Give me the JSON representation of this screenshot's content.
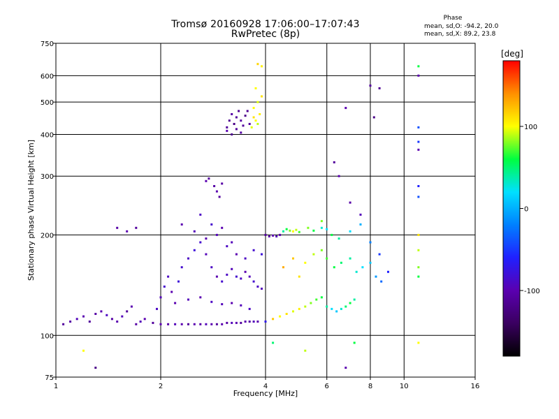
{
  "title": "Tromsø 20160928 17:06:00–17:07:43",
  "subtitle": "RwPretec (8p)",
  "phase_box": {
    "heading": "Phase",
    "o_line": "mean, sd,O: -94.2, 20.0",
    "x_line": "mean, sd,X:  89.2, 23.8"
  },
  "colorbar": {
    "title": "[deg]",
    "ticks": [
      "100",
      "0",
      "-100"
    ],
    "tick_values": [
      100,
      0,
      -100
    ],
    "range": [
      -180,
      180
    ],
    "colormap": [
      "#000000",
      "#3a0060",
      "#5a00b0",
      "#2020ff",
      "#0080ff",
      "#00e0ff",
      "#00ff40",
      "#ffff00",
      "#ff9000",
      "#ff0000"
    ]
  },
  "chart_data": {
    "type": "scatter",
    "title": "Tromsø 20160928 17:06:00–17:07:43",
    "subtitle": "RwPretec (8p)",
    "xlabel": "Frequency [MHz]",
    "ylabel": "Stationary phase Virtual Height [km]",
    "x_scale": "log",
    "y_scale": "log",
    "xlim": [
      1,
      16
    ],
    "ylim": [
      75,
      750
    ],
    "x_ticks": [
      1,
      2,
      4,
      6,
      8,
      10,
      16
    ],
    "x_tick_labels": [
      "1",
      "2",
      "4",
      "6",
      "8",
      "10",
      "16"
    ],
    "y_ticks": [
      75,
      100,
      200,
      300,
      400,
      500,
      600,
      750
    ],
    "y_tick_labels": [
      "75",
      "100",
      "200",
      "300",
      "400",
      "500",
      "600",
      "750"
    ],
    "grid": true,
    "series": [
      {
        "color_by": "phase [deg]",
        "points": [
          [
            1.05,
            108,
            -110
          ],
          [
            1.1,
            110,
            -105
          ],
          [
            1.15,
            112,
            -95
          ],
          [
            1.2,
            114,
            -100
          ],
          [
            1.25,
            110,
            -110
          ],
          [
            1.3,
            116,
            -105
          ],
          [
            1.35,
            118,
            -100
          ],
          [
            1.4,
            115,
            -90
          ],
          [
            1.45,
            112,
            -105
          ],
          [
            1.5,
            110,
            -100
          ],
          [
            1.55,
            114,
            -95
          ],
          [
            1.6,
            118,
            -110
          ],
          [
            1.65,
            122,
            -100
          ],
          [
            1.7,
            108,
            -105
          ],
          [
            1.75,
            110,
            -95
          ],
          [
            1.8,
            112,
            -100
          ],
          [
            1.9,
            109,
            -110
          ],
          [
            2.0,
            108,
            -100
          ],
          [
            2.1,
            108,
            -105
          ],
          [
            2.2,
            108,
            -95
          ],
          [
            2.3,
            108,
            -100
          ],
          [
            2.4,
            108,
            -110
          ],
          [
            2.5,
            108,
            -100
          ],
          [
            2.6,
            108,
            -105
          ],
          [
            2.7,
            108,
            -95
          ],
          [
            2.8,
            108,
            -100
          ],
          [
            2.9,
            108,
            -110
          ],
          [
            3.0,
            108,
            -100
          ],
          [
            3.1,
            109,
            -105
          ],
          [
            3.2,
            109,
            -95
          ],
          [
            3.3,
            109,
            -100
          ],
          [
            3.4,
            109,
            -110
          ],
          [
            3.5,
            110,
            -100
          ],
          [
            3.6,
            110,
            -105
          ],
          [
            3.7,
            110,
            -95
          ],
          [
            3.8,
            110,
            -100
          ],
          [
            1.95,
            120,
            -90
          ],
          [
            2.0,
            130,
            -95
          ],
          [
            2.05,
            140,
            -85
          ],
          [
            2.1,
            150,
            -90
          ],
          [
            2.15,
            135,
            -100
          ],
          [
            2.25,
            145,
            -80
          ],
          [
            2.3,
            160,
            -85
          ],
          [
            2.4,
            170,
            -90
          ],
          [
            2.5,
            180,
            -80
          ],
          [
            2.6,
            190,
            -85
          ],
          [
            2.7,
            175,
            -95
          ],
          [
            2.8,
            160,
            -90
          ],
          [
            2.9,
            150,
            -100
          ],
          [
            3.0,
            145,
            -85
          ],
          [
            3.1,
            152,
            -90
          ],
          [
            3.2,
            158,
            -95
          ],
          [
            3.3,
            150,
            -85
          ],
          [
            3.4,
            148,
            -90
          ],
          [
            3.5,
            155,
            -100
          ],
          [
            3.6,
            150,
            -95
          ],
          [
            3.7,
            145,
            -85
          ],
          [
            3.8,
            140,
            -90
          ],
          [
            3.9,
            138,
            -95
          ],
          [
            2.2,
            125,
            -100
          ],
          [
            2.4,
            128,
            -95
          ],
          [
            2.6,
            130,
            -100
          ],
          [
            2.8,
            126,
            -90
          ],
          [
            3.0,
            124,
            -95
          ],
          [
            3.2,
            125,
            -100
          ],
          [
            3.4,
            123,
            -95
          ],
          [
            3.6,
            120,
            -90
          ],
          [
            2.3,
            215,
            -100
          ],
          [
            2.5,
            205,
            -95
          ],
          [
            2.6,
            230,
            -90
          ],
          [
            2.7,
            195,
            -100
          ],
          [
            2.8,
            215,
            -85
          ],
          [
            2.9,
            200,
            -95
          ],
          [
            3.0,
            210,
            -100
          ],
          [
            3.1,
            185,
            -90
          ],
          [
            3.2,
            190,
            -95
          ],
          [
            3.3,
            175,
            -100
          ],
          [
            3.5,
            170,
            -90
          ],
          [
            3.7,
            180,
            -85
          ],
          [
            3.9,
            175,
            -80
          ],
          [
            2.7,
            290,
            -100
          ],
          [
            2.75,
            295,
            -110
          ],
          [
            2.85,
            280,
            -105
          ],
          [
            2.9,
            270,
            -100
          ],
          [
            2.95,
            260,
            -110
          ],
          [
            3.0,
            285,
            -105
          ],
          [
            3.1,
            420,
            -110
          ],
          [
            3.15,
            440,
            -115
          ],
          [
            3.2,
            460,
            -105
          ],
          [
            3.25,
            430,
            -120
          ],
          [
            3.3,
            450,
            -110
          ],
          [
            3.35,
            470,
            -115
          ],
          [
            3.4,
            440,
            -105
          ],
          [
            3.45,
            425,
            -110
          ],
          [
            3.5,
            455,
            -120
          ],
          [
            3.55,
            470,
            -115
          ],
          [
            3.6,
            430,
            -110
          ],
          [
            3.1,
            410,
            -100
          ],
          [
            3.2,
            400,
            -115
          ],
          [
            3.3,
            415,
            -110
          ],
          [
            3.4,
            405,
            -105
          ],
          [
            3.65,
            420,
            95
          ],
          [
            3.7,
            450,
            110
          ],
          [
            3.75,
            440,
            100
          ],
          [
            3.8,
            430,
            90
          ],
          [
            3.85,
            460,
            105
          ],
          [
            3.7,
            480,
            100
          ],
          [
            3.8,
            500,
            95
          ],
          [
            3.9,
            520,
            110
          ],
          [
            3.75,
            550,
            100
          ],
          [
            3.8,
            650,
            115
          ],
          [
            3.9,
            640,
            105
          ],
          [
            4.0,
            200,
            -110
          ],
          [
            4.1,
            198,
            -105
          ],
          [
            4.2,
            199,
            -100
          ],
          [
            4.3,
            198,
            -95
          ],
          [
            4.4,
            200,
            -100
          ],
          [
            4.5,
            205,
            40
          ],
          [
            4.6,
            208,
            60
          ],
          [
            4.7,
            206,
            80
          ],
          [
            4.8,
            205,
            100
          ],
          [
            4.9,
            207,
            90
          ],
          [
            5.0,
            204,
            70
          ],
          [
            5.3,
            210,
            80
          ],
          [
            5.5,
            206,
            60
          ],
          [
            5.8,
            210,
            30
          ],
          [
            6.0,
            208,
            20
          ],
          [
            4.0,
            110,
            -70
          ],
          [
            4.2,
            112,
            120
          ],
          [
            4.4,
            114,
            100
          ],
          [
            4.6,
            116,
            110
          ],
          [
            4.8,
            118,
            95
          ],
          [
            5.0,
            120,
            105
          ],
          [
            5.2,
            122,
            90
          ],
          [
            5.4,
            125,
            80
          ],
          [
            5.6,
            128,
            70
          ],
          [
            5.8,
            130,
            60
          ],
          [
            6.0,
            122,
            40
          ],
          [
            6.2,
            120,
            20
          ],
          [
            6.4,
            118,
            10
          ],
          [
            6.6,
            120,
            30
          ],
          [
            6.8,
            122,
            50
          ],
          [
            7.0,
            125,
            60
          ],
          [
            7.2,
            128,
            40
          ],
          [
            4.5,
            160,
            130
          ],
          [
            4.8,
            170,
            120
          ],
          [
            5.0,
            150,
            110
          ],
          [
            5.2,
            165,
            100
          ],
          [
            5.5,
            175,
            90
          ],
          [
            5.8,
            180,
            80
          ],
          [
            6.0,
            170,
            70
          ],
          [
            6.3,
            160,
            60
          ],
          [
            6.6,
            165,
            50
          ],
          [
            7.0,
            170,
            40
          ],
          [
            7.3,
            155,
            30
          ],
          [
            7.6,
            160,
            20
          ],
          [
            8.0,
            165,
            10
          ],
          [
            8.3,
            150,
            -10
          ],
          [
            8.6,
            145,
            -30
          ],
          [
            9.0,
            155,
            -60
          ],
          [
            5.8,
            220,
            80
          ],
          [
            6.2,
            200,
            60
          ],
          [
            6.5,
            195,
            40
          ],
          [
            7.0,
            205,
            20
          ],
          [
            7.5,
            215,
            0
          ],
          [
            8.0,
            190,
            -20
          ],
          [
            8.5,
            175,
            -50
          ],
          [
            6.8,
            480,
            -100
          ],
          [
            6.3,
            330,
            -110
          ],
          [
            6.5,
            300,
            -100
          ],
          [
            7.0,
            250,
            -105
          ],
          [
            7.5,
            230,
            -95
          ],
          [
            8.0,
            560,
            -110
          ],
          [
            8.5,
            550,
            -115
          ],
          [
            8.2,
            450,
            -120
          ],
          [
            11.0,
            150,
            60
          ],
          [
            11.0,
            160,
            80
          ],
          [
            11.0,
            180,
            90
          ],
          [
            11.0,
            200,
            110
          ],
          [
            11.0,
            260,
            -40
          ],
          [
            11.0,
            280,
            -60
          ],
          [
            11.0,
            360,
            -100
          ],
          [
            11.0,
            380,
            -50
          ],
          [
            11.0,
            420,
            -40
          ],
          [
            11.0,
            600,
            -100
          ],
          [
            11.0,
            640,
            60
          ],
          [
            11.0,
            95,
            100
          ],
          [
            1.3,
            80,
            -120
          ],
          [
            1.2,
            90,
            100
          ],
          [
            4.2,
            95,
            50
          ],
          [
            5.2,
            90,
            90
          ],
          [
            6.8,
            80,
            -100
          ],
          [
            7.2,
            95,
            60
          ],
          [
            1.6,
            205,
            -100
          ],
          [
            1.7,
            210,
            -110
          ],
          [
            1.5,
            210,
            -105
          ]
        ]
      }
    ]
  }
}
